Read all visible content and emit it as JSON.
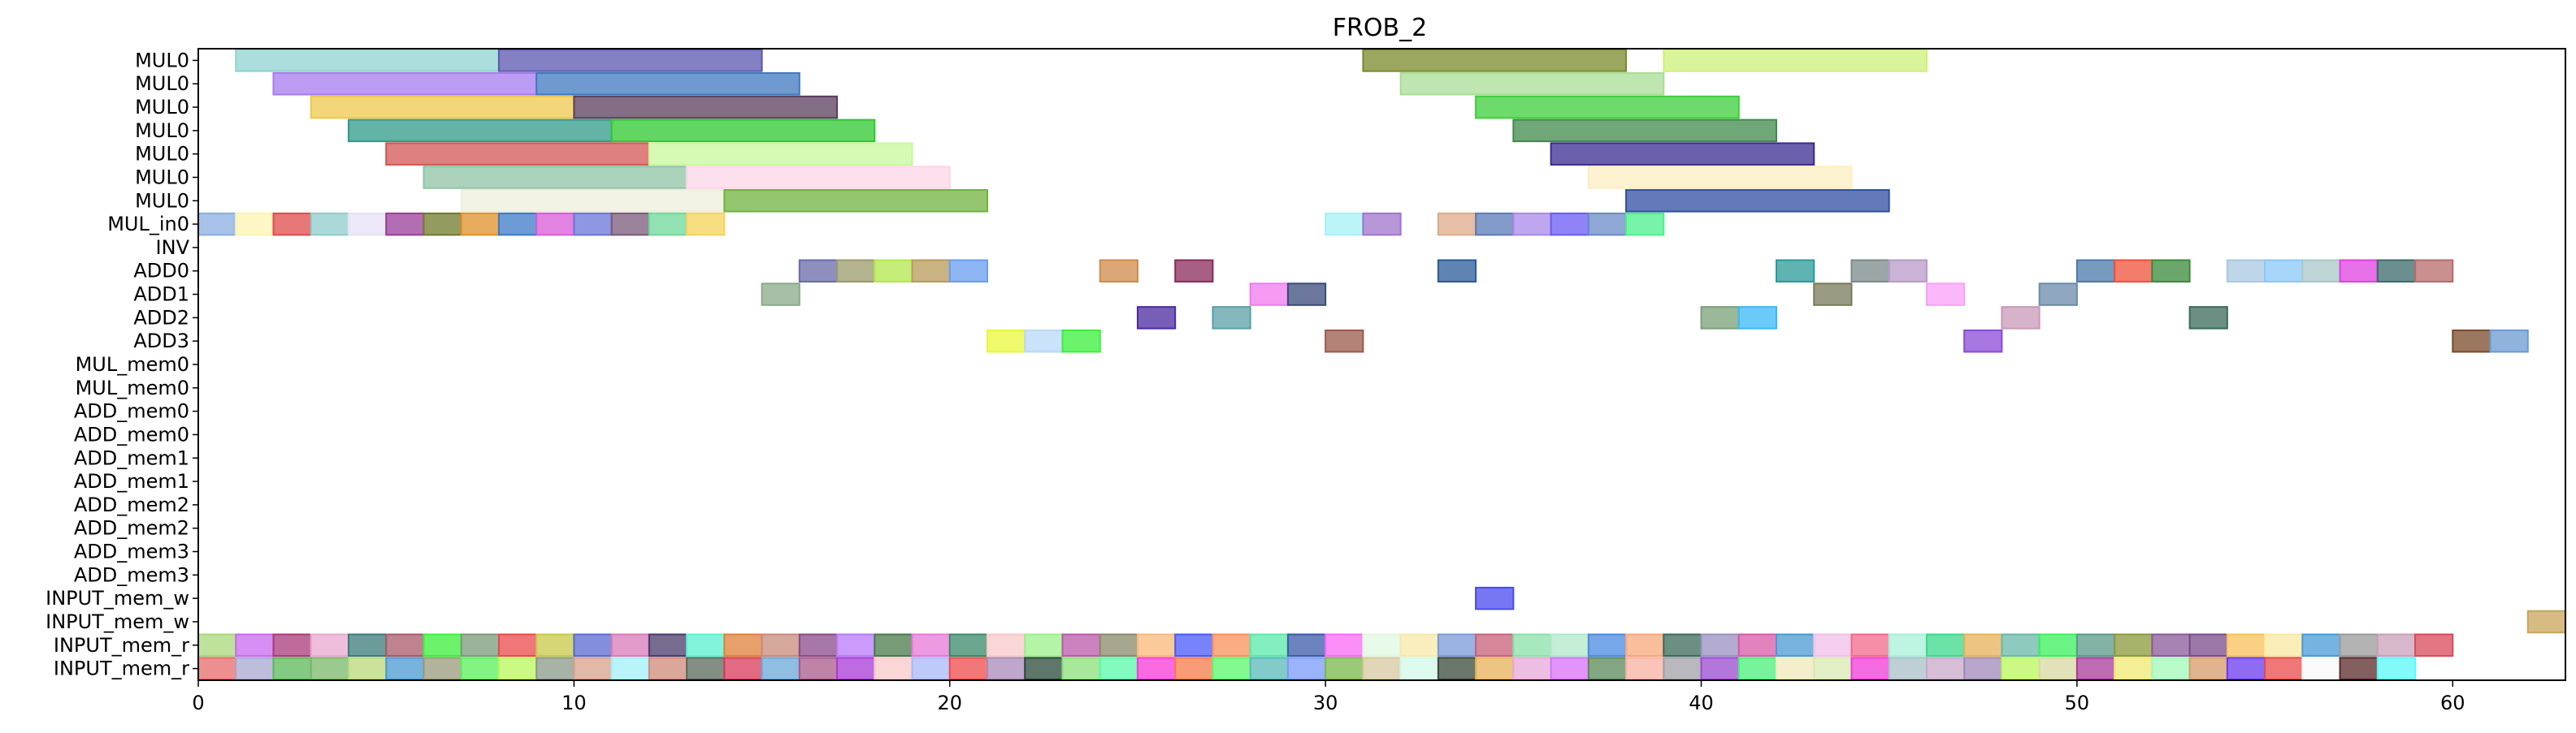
{
  "chart_data": {
    "type": "gantt",
    "title": "FROB_2",
    "xlim": [
      0,
      63
    ],
    "x_ticks": [
      0,
      10,
      20,
      30,
      40,
      50,
      60
    ],
    "grid": false,
    "legend": "none",
    "rows": [
      "MUL0",
      "MUL0",
      "MUL0",
      "MUL0",
      "MUL0",
      "MUL0",
      "MUL0",
      "MUL_in0",
      "INV",
      "ADD0",
      "ADD1",
      "ADD2",
      "ADD3",
      "MUL_mem0",
      "MUL_mem0",
      "ADD_mem0",
      "ADD_mem0",
      "ADD_mem1",
      "ADD_mem1",
      "ADD_mem2",
      "ADD_mem2",
      "ADD_mem3",
      "ADD_mem3",
      "INPUT_mem_w",
      "INPUT_mem_w",
      "INPUT_mem_r",
      "INPUT_mem_r"
    ],
    "tasks": [
      {
        "row": 0,
        "start": 1,
        "end": 8,
        "color": "#8fd3d0"
      },
      {
        "row": 0,
        "start": 8,
        "end": 15,
        "color": "#5a55b0"
      },
      {
        "row": 0,
        "start": 31,
        "end": 38,
        "color": "#7a8a2a"
      },
      {
        "row": 0,
        "start": 39,
        "end": 46,
        "color": "#cdf07a"
      },
      {
        "row": 1,
        "start": 2,
        "end": 9,
        "color": "#a57bef"
      },
      {
        "row": 1,
        "start": 9,
        "end": 16,
        "color": "#3f78c0"
      },
      {
        "row": 1,
        "start": 32,
        "end": 39,
        "color": "#a9dc95"
      },
      {
        "row": 2,
        "start": 3,
        "end": 10,
        "color": "#efc84c"
      },
      {
        "row": 2,
        "start": 10,
        "end": 17,
        "color": "#5a3d5c"
      },
      {
        "row": 2,
        "start": 34,
        "end": 41,
        "color": "#3ccf3a"
      },
      {
        "row": 3,
        "start": 4,
        "end": 11,
        "color": "#2f9a8a"
      },
      {
        "row": 3,
        "start": 11,
        "end": 18,
        "color": "#2ec82e"
      },
      {
        "row": 3,
        "start": 35,
        "end": 42,
        "color": "#3f8a4c"
      },
      {
        "row": 4,
        "start": 5,
        "end": 12,
        "color": "#d25553"
      },
      {
        "row": 4,
        "start": 12,
        "end": 19,
        "color": "#c8f89a"
      },
      {
        "row": 4,
        "start": 36,
        "end": 43,
        "color": "#3a2b90"
      },
      {
        "row": 5,
        "start": 6,
        "end": 13,
        "color": "#8fc4a6"
      },
      {
        "row": 5,
        "start": 13,
        "end": 20,
        "color": "#fcd5e8"
      },
      {
        "row": 5,
        "start": 37,
        "end": 44,
        "color": "#fdeec2"
      },
      {
        "row": 6,
        "start": 7,
        "end": 14,
        "color": "#eeeedc"
      },
      {
        "row": 6,
        "start": 14,
        "end": 21,
        "color": "#6fb33d"
      },
      {
        "row": 6,
        "start": 38,
        "end": 45,
        "color": "#2f4da3"
      },
      {
        "row": 7,
        "start": 0,
        "end": 1,
        "color": "#8aaee0"
      },
      {
        "row": 7,
        "start": 1,
        "end": 2,
        "color": "#fdf3b0"
      },
      {
        "row": 7,
        "start": 2,
        "end": 3,
        "color": "#e04a4a"
      },
      {
        "row": 7,
        "start": 3,
        "end": 4,
        "color": "#8fcccc"
      },
      {
        "row": 7,
        "start": 4,
        "end": 5,
        "color": "#e6e0f5"
      },
      {
        "row": 7,
        "start": 5,
        "end": 6,
        "color": "#9a3d9a"
      },
      {
        "row": 7,
        "start": 6,
        "end": 7,
        "color": "#6f7a2a"
      },
      {
        "row": 7,
        "start": 7,
        "end": 8,
        "color": "#e0902a"
      },
      {
        "row": 7,
        "start": 8,
        "end": 9,
        "color": "#3b7ac7"
      },
      {
        "row": 7,
        "start": 9,
        "end": 10,
        "color": "#d85ad8"
      },
      {
        "row": 7,
        "start": 10,
        "end": 11,
        "color": "#6a74d8"
      },
      {
        "row": 7,
        "start": 11,
        "end": 12,
        "color": "#7a5a7a"
      },
      {
        "row": 7,
        "start": 12,
        "end": 13,
        "color": "#6ed899"
      },
      {
        "row": 7,
        "start": 13,
        "end": 14,
        "color": "#f5d35a"
      },
      {
        "row": 7,
        "start": 30,
        "end": 31,
        "color": "#a5f1f5"
      },
      {
        "row": 7,
        "start": 31,
        "end": 32,
        "color": "#a074cc"
      },
      {
        "row": 7,
        "start": 33,
        "end": 34,
        "color": "#dfa98a"
      },
      {
        "row": 7,
        "start": 34,
        "end": 35,
        "color": "#5a7ab5"
      },
      {
        "row": 7,
        "start": 35,
        "end": 36,
        "color": "#a889e8"
      },
      {
        "row": 7,
        "start": 36,
        "end": 37,
        "color": "#6a5af5"
      },
      {
        "row": 7,
        "start": 37,
        "end": 38,
        "color": "#6a8ac5"
      },
      {
        "row": 7,
        "start": 38,
        "end": 39,
        "color": "#4af08a"
      },
      {
        "row": 9,
        "start": 16,
        "end": 17,
        "color": "#6a6aaa"
      },
      {
        "row": 9,
        "start": 17,
        "end": 18,
        "color": "#9a9a6a"
      },
      {
        "row": 9,
        "start": 18,
        "end": 19,
        "color": "#b0e84a"
      },
      {
        "row": 9,
        "start": 19,
        "end": 20,
        "color": "#b89a5a"
      },
      {
        "row": 9,
        "start": 20,
        "end": 21,
        "color": "#6a9ef0"
      },
      {
        "row": 9,
        "start": 24,
        "end": 25,
        "color": "#d08a4a"
      },
      {
        "row": 9,
        "start": 26,
        "end": 27,
        "color": "#8a2a5a"
      },
      {
        "row": 9,
        "start": 33,
        "end": 34,
        "color": "#2a5a9a"
      },
      {
        "row": 9,
        "start": 42,
        "end": 43,
        "color": "#2a9a9a"
      },
      {
        "row": 9,
        "start": 44,
        "end": 45,
        "color": "#7a8a8a"
      },
      {
        "row": 9,
        "start": 45,
        "end": 46,
        "color": "#b89ac8"
      },
      {
        "row": 9,
        "start": 50,
        "end": 51,
        "color": "#4a7aaa"
      },
      {
        "row": 9,
        "start": 51,
        "end": 52,
        "color": "#f0503a"
      },
      {
        "row": 9,
        "start": 52,
        "end": 53,
        "color": "#3a8a3a"
      },
      {
        "row": 9,
        "start": 54,
        "end": 55,
        "color": "#a8c8e0"
      },
      {
        "row": 9,
        "start": 55,
        "end": 56,
        "color": "#8ac8f8"
      },
      {
        "row": 9,
        "start": 56,
        "end": 57,
        "color": "#a8c8c8"
      },
      {
        "row": 9,
        "start": 57,
        "end": 58,
        "color": "#e040e0"
      },
      {
        "row": 9,
        "start": 58,
        "end": 59,
        "color": "#3a6a6a"
      },
      {
        "row": 9,
        "start": 59,
        "end": 60,
        "color": "#b86a6a"
      },
      {
        "row": 10,
        "start": 15,
        "end": 16,
        "color": "#8aaa8a"
      },
      {
        "row": 10,
        "start": 28,
        "end": 29,
        "color": "#f07af0"
      },
      {
        "row": 10,
        "start": 29,
        "end": 30,
        "color": "#3a4a7a"
      },
      {
        "row": 10,
        "start": 43,
        "end": 44,
        "color": "#7a7a5a"
      },
      {
        "row": 10,
        "start": 46,
        "end": 47,
        "color": "#f8a0f8"
      },
      {
        "row": 10,
        "start": 49,
        "end": 50,
        "color": "#6a8aaa"
      },
      {
        "row": 11,
        "start": 25,
        "end": 26,
        "color": "#4a2aa0"
      },
      {
        "row": 11,
        "start": 27,
        "end": 28,
        "color": "#5aa0a8"
      },
      {
        "row": 11,
        "start": 40,
        "end": 41,
        "color": "#7aa07a"
      },
      {
        "row": 11,
        "start": 41,
        "end": 42,
        "color": "#3ab8f8"
      },
      {
        "row": 11,
        "start": 48,
        "end": 49,
        "color": "#c89ab8"
      },
      {
        "row": 11,
        "start": 53,
        "end": 54,
        "color": "#3a6a5a"
      },
      {
        "row": 12,
        "start": 21,
        "end": 22,
        "color": "#e8f83a"
      },
      {
        "row": 12,
        "start": 22,
        "end": 23,
        "color": "#b8d8f8"
      },
      {
        "row": 12,
        "start": 23,
        "end": 24,
        "color": "#3af03a"
      },
      {
        "row": 12,
        "start": 30,
        "end": 31,
        "color": "#9a5a4a"
      },
      {
        "row": 12,
        "start": 47,
        "end": 48,
        "color": "#8a4ad8"
      },
      {
        "row": 12,
        "start": 60,
        "end": 61,
        "color": "#7a4a2a"
      },
      {
        "row": 12,
        "start": 61,
        "end": 62,
        "color": "#6a9ad0"
      },
      {
        "row": 23,
        "start": 34,
        "end": 35,
        "color": "#4a4af0"
      },
      {
        "row": 24,
        "start": 62,
        "end": 63,
        "color": "#c8a45a"
      }
    ],
    "mem_rows": {
      "row25_colors": [
        "#a8d87a",
        "#c86af0",
        "#a83a7a",
        "#e8a8d0",
        "#3a7a7a",
        "#a85a6a",
        "#3af03a",
        "#7a9a7a",
        "#e84a4a",
        "#c8c84a",
        "#5a6ad0",
        "#d87ab8",
        "#4a3a6a",
        "#5af0d0",
        "#e0803a",
        "#c88a7a",
        "#8a4a8a",
        "#b87af8",
        "#4a7a4a",
        "#e878d8",
        "#3a8a6a",
        "#f8c8c8",
        "#9af08a",
        "#b85aa8",
        "#8a8a6a",
        "#f8b87a",
        "#4a5af8",
        "#f8905a",
        "#5ae8a8",
        "#3a5aa8",
        "#f86af8",
        "#e0f8e0",
        "#f8e8a8",
        "#7a9ad8",
        "#c8607a",
        "#8ae0a8",
        "#b0e8c8",
        "#4a8ae0",
        "#f8a87a",
        "#3a6a5a",
        "#9a90c0",
        "#d85aa8",
        "#4a9ad0",
        "#f0c0e8",
        "#f06a8a",
        "#a8f0d8",
        "#3ad88a",
        "#e8b05a",
        "#6ab8a8",
        "#3af05a",
        "#5a9a8a",
        "#8a9a3a",
        "#8a5a9a",
        "#7a4a8a",
        "#f8c05a",
        "#f8e8a0",
        "#4a9ad8",
        "#9a9a9a",
        "#c8a0b8",
        "#d84a5a"
      ],
      "row26_colors": [
        "#e86a6a",
        "#a8a8d0",
        "#5ab85a",
        "#7ab86a",
        "#b8d87a",
        "#4a9ad0",
        "#9a9a7a",
        "#5af05a",
        "#b8f85a",
        "#8a9a8a",
        "#d8a08a",
        "#a0f0f8",
        "#d08a7a",
        "#5a6a5a",
        "#d83a5a",
        "#6aa8d8",
        "#a85a8a",
        "#a83ad8",
        "#f8c8c8",
        "#a8b8f8",
        "#f04a4a",
        "#a88ab8",
        "#2a4a3a",
        "#8ae07a",
        "#5af8a8",
        "#f83ad8",
        "#f87a4a",
        "#5af86a",
        "#5ab8b8",
        "#7a9af8",
        "#7ab84a",
        "#d8c8a0",
        "#d0f8e8",
        "#3a4a3a",
        "#e8b05a",
        "#e8a8d8",
        "#d870f8",
        "#5a8a5a",
        "#f8b0a0",
        "#a0a0a8",
        "#9a4ad0",
        "#4af07a",
        "#f0e8b8",
        "#d8e8b0",
        "#f03ad8",
        "#a8c0c8",
        "#c8a8c8",
        "#a08ab8",
        "#b8f85a",
        "#d8d8a0",
        "#a83a9a",
        "#f0e870",
        "#a0f8b8",
        "#d89a6a",
        "#6a3af0",
        "#e84a4a",
        "#f8f8f8",
        "#5a2a2a",
        "#5af8f8"
      ]
    }
  }
}
